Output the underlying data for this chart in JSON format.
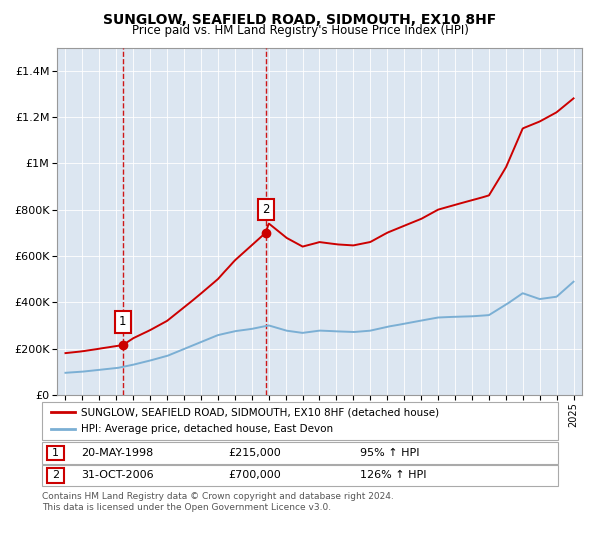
{
  "title": "SUNGLOW, SEAFIELD ROAD, SIDMOUTH, EX10 8HF",
  "subtitle": "Price paid vs. HM Land Registry's House Price Index (HPI)",
  "legend_line1": "SUNGLOW, SEAFIELD ROAD, SIDMOUTH, EX10 8HF (detached house)",
  "legend_line2": "HPI: Average price, detached house, East Devon",
  "sale1_date": "20-MAY-1998",
  "sale1_price": 215000,
  "sale1_label": "95% ↑ HPI",
  "sale2_date": "31-OCT-2006",
  "sale2_price": 700000,
  "sale2_label": "126% ↑ HPI",
  "footer": "Contains HM Land Registry data © Crown copyright and database right 2024.\nThis data is licensed under the Open Government Licence v3.0.",
  "sale1_year": 1998.38,
  "sale2_year": 2006.83,
  "xlim": [
    1994.5,
    2025.5
  ],
  "ylim": [
    0,
    1500000
  ],
  "yticks": [
    0,
    200000,
    400000,
    600000,
    800000,
    1000000,
    1200000,
    1400000
  ],
  "ytick_labels": [
    "£0",
    "£200K",
    "£400K",
    "£600K",
    "£800K",
    "£1M",
    "£1.2M",
    "£1.4M"
  ],
  "red_color": "#cc0000",
  "blue_color": "#7bafd4",
  "background_color": "#dce6f1",
  "hpi_years": [
    1995,
    1996,
    1997,
    1998,
    1999,
    2000,
    2001,
    2002,
    2003,
    2004,
    2005,
    2006,
    2007,
    2008,
    2009,
    2010,
    2011,
    2012,
    2013,
    2014,
    2015,
    2016,
    2017,
    2018,
    2019,
    2020,
    2021,
    2022,
    2023,
    2024,
    2025
  ],
  "hpi_values": [
    95000,
    100000,
    108000,
    115000,
    130000,
    148000,
    168000,
    198000,
    228000,
    258000,
    275000,
    285000,
    300000,
    278000,
    268000,
    278000,
    275000,
    272000,
    278000,
    295000,
    308000,
    322000,
    335000,
    338000,
    340000,
    345000,
    390000,
    440000,
    415000,
    425000,
    490000
  ],
  "prop_years": [
    1995,
    1996,
    1997,
    1998.38,
    1999,
    2000,
    2001,
    2002,
    2003,
    2004,
    2005,
    2006.83,
    2007,
    2008,
    2009,
    2010,
    2011,
    2012,
    2013,
    2014,
    2015,
    2016,
    2017,
    2018,
    2019,
    2020,
    2021,
    2022,
    2023,
    2024,
    2025
  ],
  "prop_values": [
    180000,
    188000,
    200000,
    215000,
    245000,
    280000,
    320000,
    378000,
    438000,
    500000,
    580000,
    700000,
    740000,
    680000,
    640000,
    660000,
    650000,
    645000,
    660000,
    700000,
    730000,
    760000,
    800000,
    820000,
    840000,
    860000,
    980000,
    1150000,
    1180000,
    1220000,
    1280000
  ]
}
